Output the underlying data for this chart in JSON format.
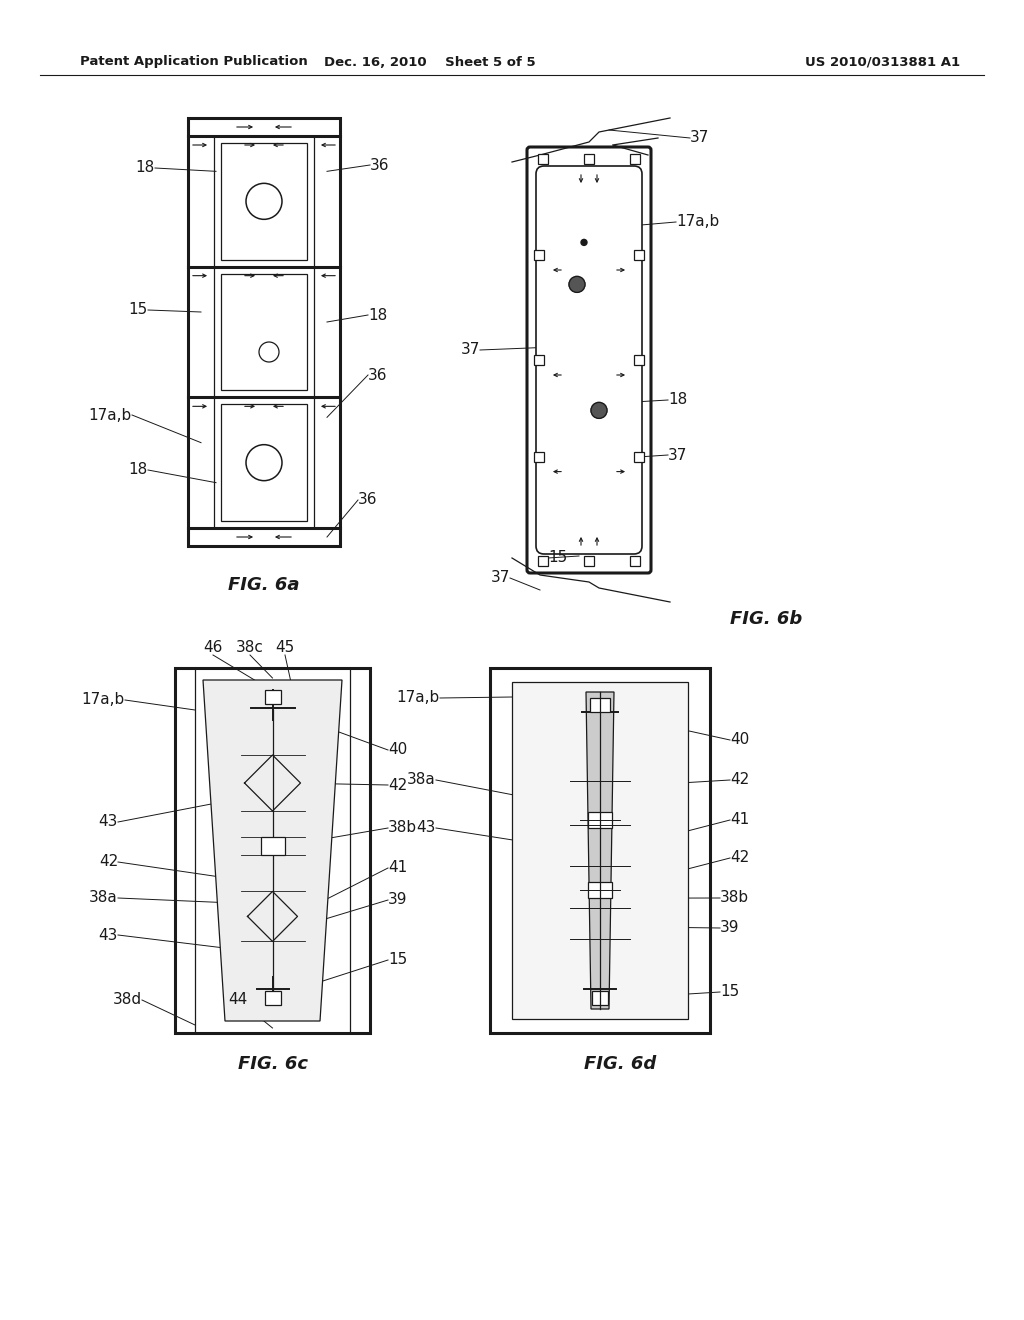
{
  "header_left": "Patent Application Publication",
  "header_mid": "Dec. 16, 2010  Sheet 5 of 5",
  "header_right": "US 2010/0313881 A1",
  "background_color": "#ffffff"
}
